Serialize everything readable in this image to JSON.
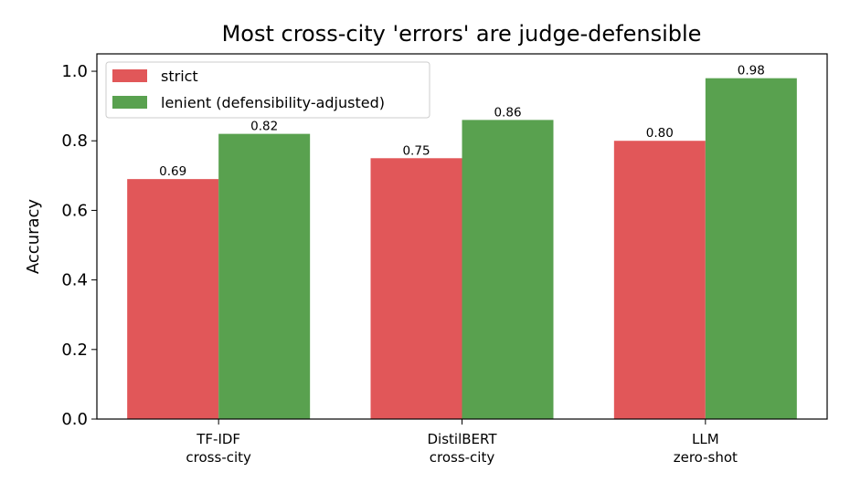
{
  "chart_data": {
    "type": "bar",
    "title": "Most cross-city 'errors' are judge-defensible",
    "xlabel": "",
    "ylabel": "Accuracy",
    "categories": [
      [
        "TF-IDF",
        "cross-city"
      ],
      [
        "DistilBERT",
        "cross-city"
      ],
      [
        "LLM",
        "zero-shot"
      ]
    ],
    "series": [
      {
        "name": "strict",
        "color": "#e15759",
        "values": [
          0.69,
          0.75,
          0.8
        ],
        "labels": [
          "0.69",
          "0.75",
          "0.80"
        ]
      },
      {
        "name": "lenient (defensibility-adjusted)",
        "color": "#59a14f",
        "values": [
          0.82,
          0.86,
          0.98
        ],
        "labels": [
          "0.82",
          "0.86",
          "0.98"
        ]
      }
    ],
    "ylim": [
      0,
      1.05
    ],
    "yticks": [
      0.0,
      0.2,
      0.4,
      0.6,
      0.8,
      1.0
    ],
    "ytick_labels": [
      "0.0",
      "0.2",
      "0.4",
      "0.6",
      "0.8",
      "1.0"
    ],
    "grid": false,
    "legend_position": "top-left"
  }
}
